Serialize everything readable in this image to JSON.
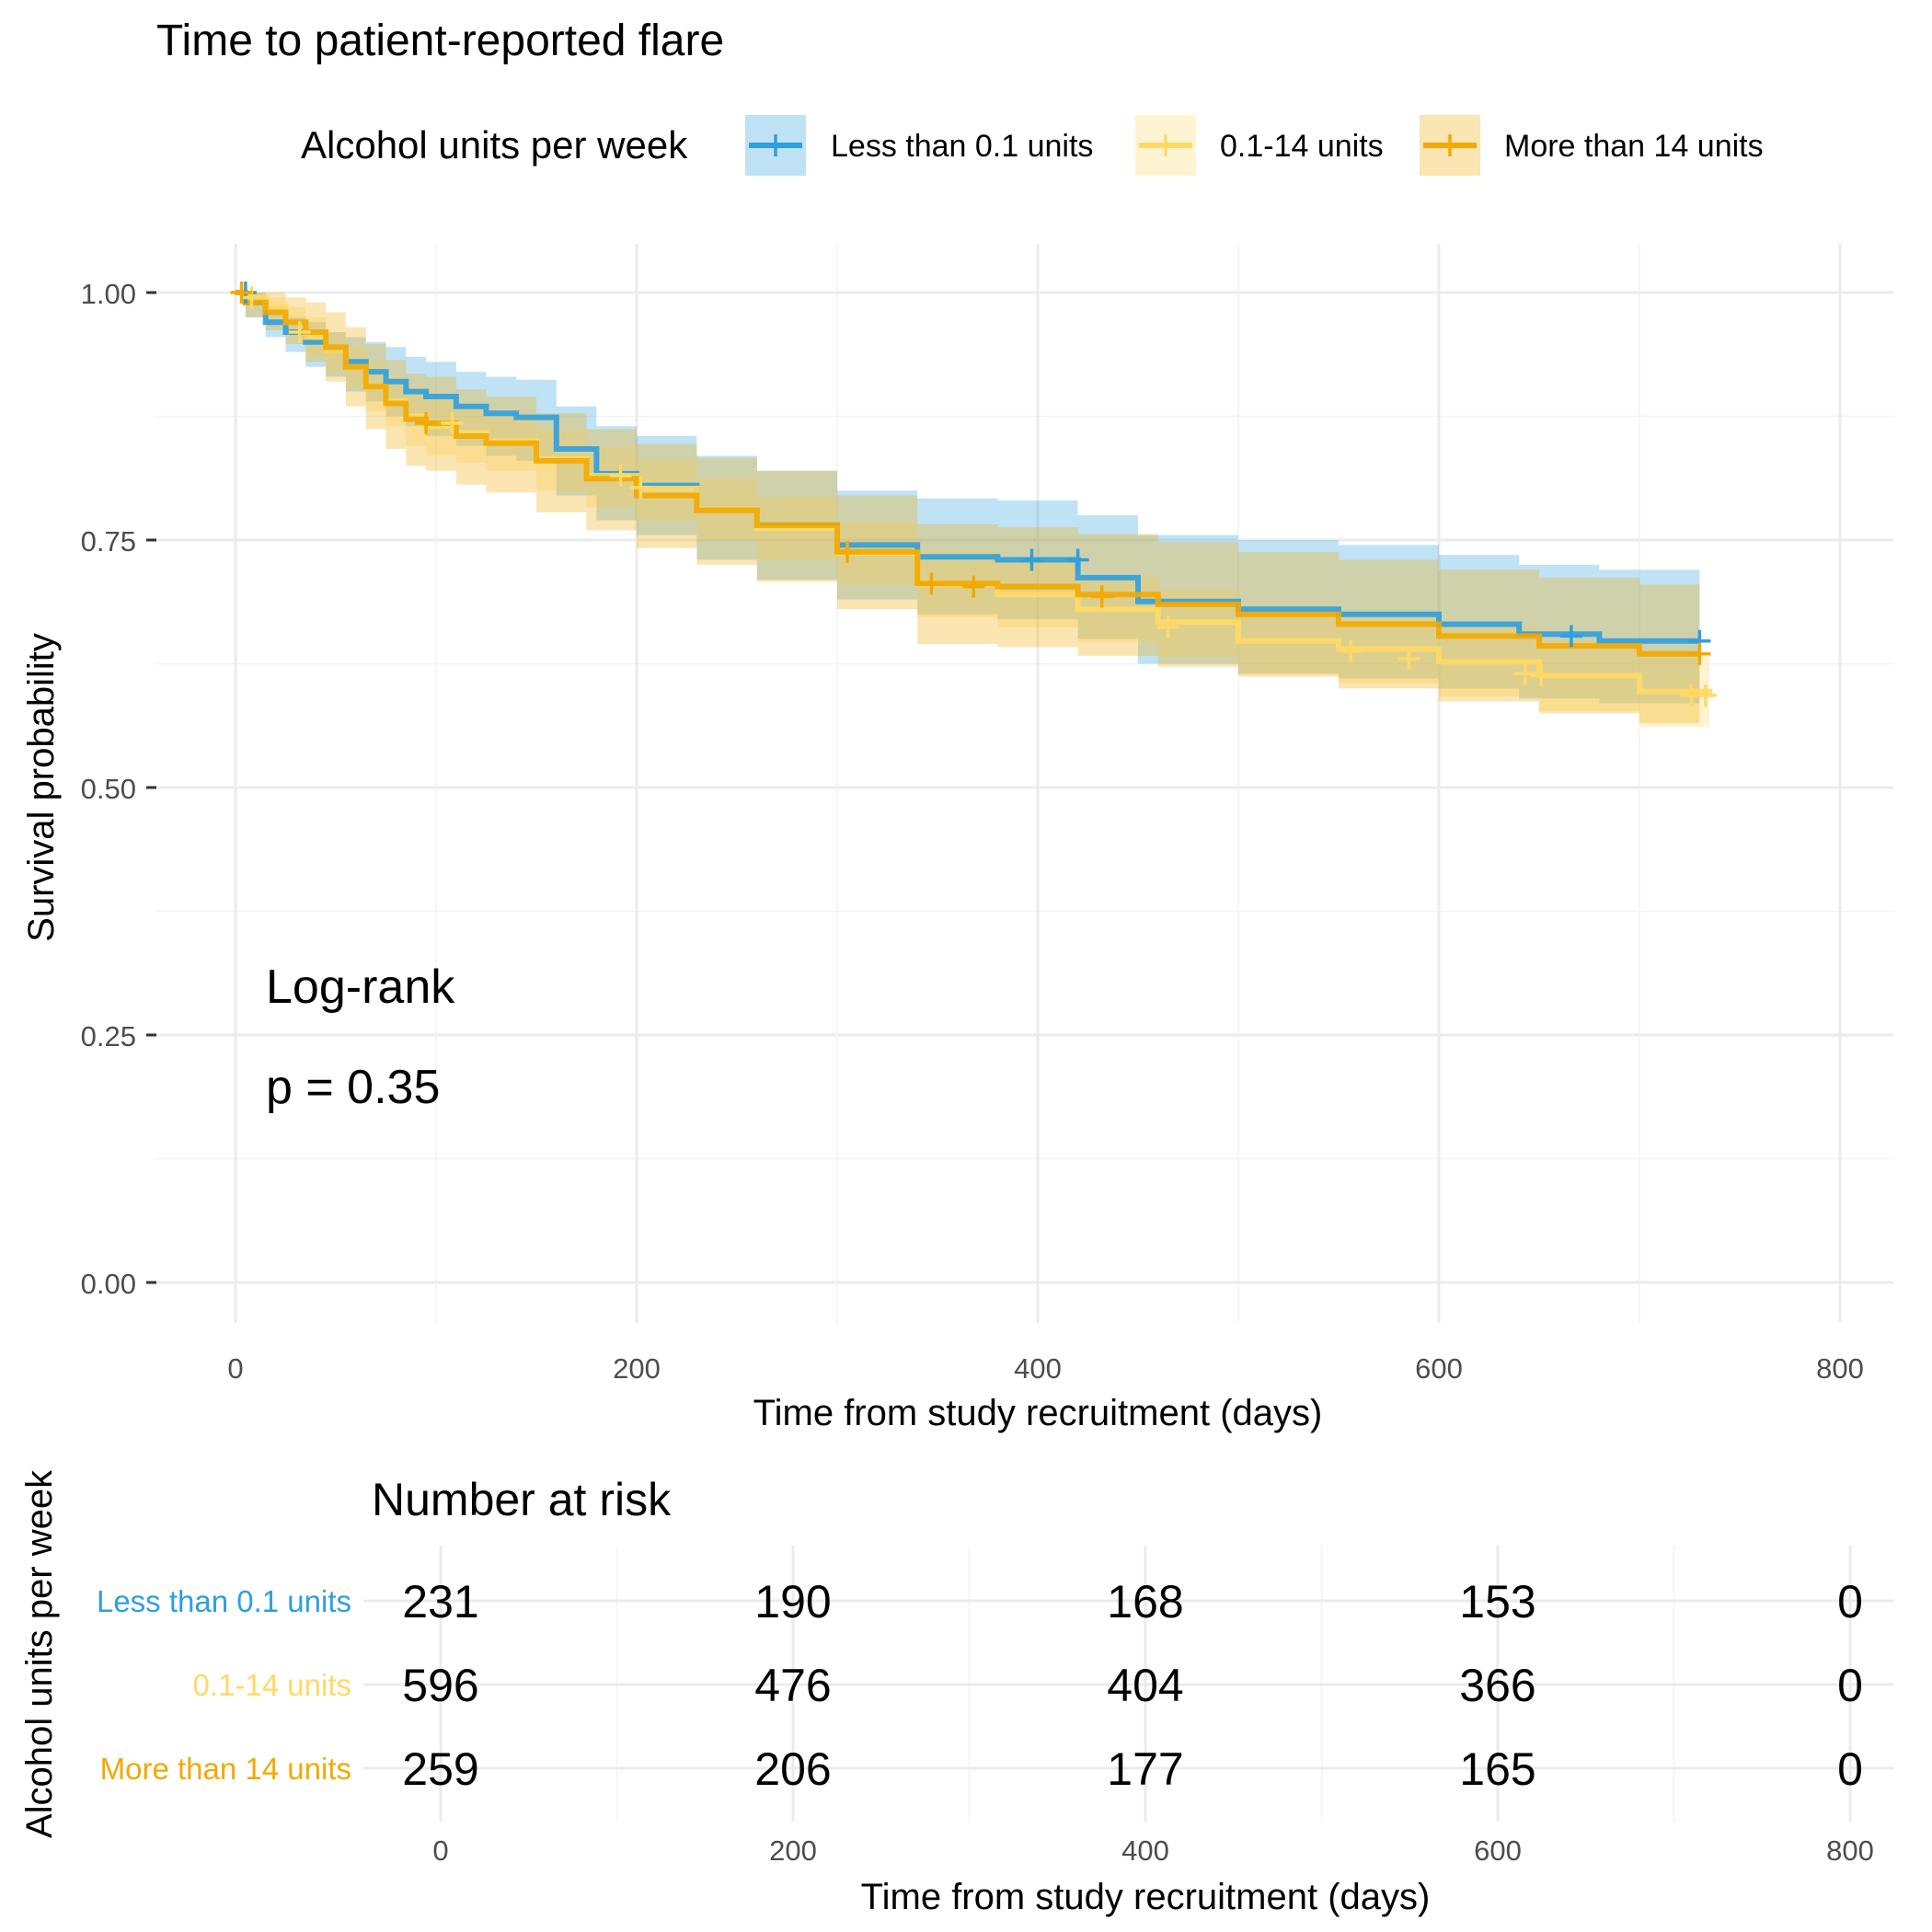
{
  "chart_data": {
    "type": "line",
    "subtype": "kaplan-meier",
    "title": "Time to patient-reported flare",
    "legend": {
      "title": "Alcohol units per week",
      "position": "top",
      "entries": [
        "Less than 0.1 units",
        "0.1-14 units",
        "More than 14 units"
      ]
    },
    "xlabel": "Time from study recruitment (days)",
    "ylabel": "Survival probability",
    "xlim": [
      -20,
      820
    ],
    "ylim": [
      0,
      1
    ],
    "xticks": [
      0,
      200,
      400,
      600,
      800
    ],
    "xtick_labels": [
      "0",
      "200",
      "400",
      "600",
      "800"
    ],
    "yticks": [
      0,
      0.25,
      0.5,
      0.75,
      1.0
    ],
    "ytick_labels": [
      "0.00",
      "0.25",
      "0.50",
      "0.75",
      "1.00"
    ],
    "grid": true,
    "annotation": {
      "line1": "Log-rank",
      "line2": "p = 0.35"
    },
    "series": [
      {
        "name": "Less than 0.1 units",
        "color": "#2E9FDF",
        "x": [
          0,
          5,
          15,
          25,
          35,
          45,
          55,
          65,
          75,
          85,
          95,
          110,
          125,
          140,
          160,
          180,
          200,
          230,
          260,
          300,
          340,
          380,
          420,
          450,
          500,
          550,
          600,
          640,
          680,
          730
        ],
        "y": [
          1.0,
          0.99,
          0.97,
          0.96,
          0.95,
          0.94,
          0.93,
          0.92,
          0.91,
          0.9,
          0.895,
          0.885,
          0.878,
          0.874,
          0.842,
          0.817,
          0.805,
          0.782,
          0.765,
          0.745,
          0.733,
          0.73,
          0.712,
          0.688,
          0.68,
          0.675,
          0.665,
          0.655,
          0.648,
          0.648
        ],
        "upper": [
          1.0,
          1.0,
          0.985,
          0.975,
          0.97,
          0.96,
          0.955,
          0.95,
          0.945,
          0.935,
          0.93,
          0.92,
          0.915,
          0.912,
          0.885,
          0.865,
          0.855,
          0.835,
          0.82,
          0.8,
          0.792,
          0.79,
          0.775,
          0.755,
          0.75,
          0.745,
          0.735,
          0.725,
          0.72,
          0.715
        ],
        "lower": [
          1.0,
          0.975,
          0.955,
          0.94,
          0.925,
          0.915,
          0.9,
          0.89,
          0.875,
          0.865,
          0.855,
          0.845,
          0.835,
          0.83,
          0.795,
          0.77,
          0.755,
          0.73,
          0.71,
          0.69,
          0.675,
          0.67,
          0.65,
          0.625,
          0.615,
          0.61,
          0.6,
          0.59,
          0.585,
          0.585
        ],
        "censor": [
          [
            5,
            1.0
          ],
          [
            397,
            0.73
          ],
          [
            420,
            0.73
          ],
          [
            666,
            0.653
          ],
          [
            730,
            0.648
          ]
        ]
      },
      {
        "name": "0.1-14 units",
        "color": "#FFD966",
        "x": [
          0,
          5,
          15,
          25,
          35,
          45,
          55,
          65,
          75,
          85,
          95,
          110,
          125,
          150,
          175,
          200,
          230,
          260,
          300,
          340,
          380,
          420,
          460,
          500,
          550,
          600,
          650,
          700,
          735
        ],
        "y": [
          1.0,
          0.995,
          0.985,
          0.97,
          0.955,
          0.94,
          0.925,
          0.905,
          0.89,
          0.875,
          0.865,
          0.858,
          0.85,
          0.832,
          0.815,
          0.802,
          0.782,
          0.762,
          0.737,
          0.705,
          0.695,
          0.68,
          0.667,
          0.648,
          0.64,
          0.627,
          0.613,
          0.597,
          0.593
        ],
        "upper": [
          1.0,
          1.0,
          0.995,
          0.985,
          0.975,
          0.96,
          0.945,
          0.93,
          0.915,
          0.905,
          0.895,
          0.885,
          0.878,
          0.862,
          0.845,
          0.832,
          0.812,
          0.793,
          0.768,
          0.738,
          0.728,
          0.713,
          0.7,
          0.682,
          0.675,
          0.662,
          0.648,
          0.633,
          0.63
        ],
        "lower": [
          1.0,
          0.985,
          0.975,
          0.955,
          0.935,
          0.92,
          0.905,
          0.88,
          0.865,
          0.845,
          0.835,
          0.828,
          0.82,
          0.8,
          0.783,
          0.77,
          0.75,
          0.73,
          0.705,
          0.672,
          0.662,
          0.647,
          0.632,
          0.614,
          0.605,
          0.592,
          0.577,
          0.561,
          0.556
        ],
        "censor": [
          [
            8,
            0.995
          ],
          [
            32,
            0.96
          ],
          [
            108,
            0.868
          ],
          [
            192,
            0.815
          ],
          [
            202,
            0.803
          ],
          [
            465,
            0.662
          ],
          [
            556,
            0.638
          ],
          [
            585,
            0.63
          ],
          [
            643,
            0.615
          ],
          [
            651,
            0.613
          ],
          [
            726,
            0.593
          ],
          [
            733,
            0.593
          ]
        ]
      },
      {
        "name": "More than 14 units",
        "color": "#F2A900",
        "x": [
          0,
          5,
          15,
          25,
          35,
          45,
          55,
          65,
          75,
          85,
          95,
          110,
          125,
          150,
          175,
          200,
          230,
          260,
          300,
          340,
          380,
          420,
          460,
          500,
          550,
          600,
          650,
          700,
          730
        ],
        "y": [
          1.0,
          0.99,
          0.98,
          0.97,
          0.96,
          0.945,
          0.925,
          0.905,
          0.888,
          0.872,
          0.868,
          0.855,
          0.848,
          0.83,
          0.812,
          0.795,
          0.78,
          0.765,
          0.738,
          0.706,
          0.703,
          0.695,
          0.685,
          0.675,
          0.665,
          0.653,
          0.643,
          0.635,
          0.635
        ],
        "upper": [
          1.0,
          1.0,
          1.0,
          0.995,
          0.99,
          0.98,
          0.965,
          0.948,
          0.932,
          0.918,
          0.915,
          0.902,
          0.895,
          0.878,
          0.862,
          0.847,
          0.833,
          0.82,
          0.795,
          0.766,
          0.763,
          0.756,
          0.748,
          0.738,
          0.73,
          0.72,
          0.712,
          0.705,
          0.705
        ],
        "lower": [
          1.0,
          0.975,
          0.962,
          0.948,
          0.93,
          0.91,
          0.885,
          0.862,
          0.842,
          0.825,
          0.82,
          0.806,
          0.798,
          0.778,
          0.76,
          0.742,
          0.725,
          0.708,
          0.68,
          0.645,
          0.642,
          0.633,
          0.622,
          0.612,
          0.6,
          0.587,
          0.575,
          0.565,
          0.565
        ],
        "censor": [
          [
            3,
            1.0
          ],
          [
            95,
            0.868
          ],
          [
            305,
            0.738
          ],
          [
            347,
            0.706
          ],
          [
            368,
            0.703
          ],
          [
            432,
            0.693
          ],
          [
            730,
            0.635
          ]
        ]
      }
    ]
  },
  "risk_table": {
    "title": "Number at risk",
    "ylabel": "Alcohol units per week",
    "xlabel": "Time from study recruitment (days)",
    "times": [
      0,
      200,
      400,
      600,
      800
    ],
    "time_labels": [
      "0",
      "200",
      "400",
      "600",
      "800"
    ],
    "rows": [
      {
        "label": "Less than 0.1 units",
        "color": "#2E9FDF",
        "counts": [
          "231",
          "190",
          "168",
          "153",
          "0"
        ]
      },
      {
        "label": "0.1-14 units",
        "color": "#FFD966",
        "counts": [
          "596",
          "476",
          "404",
          "366",
          "0"
        ]
      },
      {
        "label": "More than 14 units",
        "color": "#F2A900",
        "counts": [
          "259",
          "206",
          "177",
          "165",
          "0"
        ]
      }
    ]
  }
}
